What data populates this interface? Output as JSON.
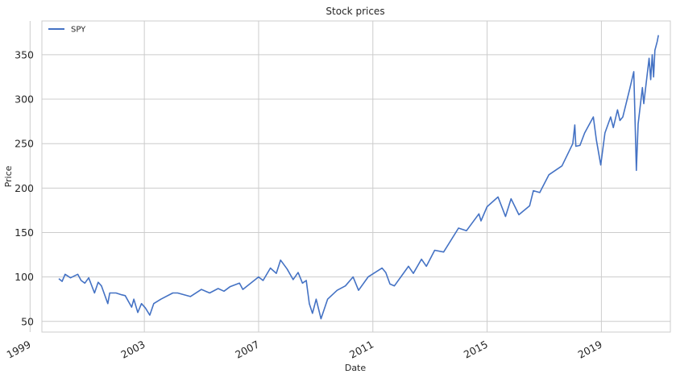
{
  "chart_data": {
    "type": "line",
    "title": "Stock prices",
    "xlabel": "Date",
    "ylabel": "Price",
    "xlim": [
      "1999-06-01",
      "2021-06-01"
    ],
    "ylim": [
      38,
      388
    ],
    "x_ticks": [
      "1999",
      "2003",
      "2007",
      "2011",
      "2015",
      "2019"
    ],
    "y_ticks": [
      50,
      100,
      150,
      200,
      250,
      300,
      350
    ],
    "grid": true,
    "legend": {
      "placement": "top-left"
    },
    "colors": {
      "line": "#4472c4",
      "grid": "#cccccc"
    },
    "series": [
      {
        "name": "SPY",
        "points": [
          [
            "2000-01-03",
            98
          ],
          [
            "2000-02-15",
            95
          ],
          [
            "2000-03-24",
            103
          ],
          [
            "2000-06-01",
            99
          ],
          [
            "2000-09-01",
            103
          ],
          [
            "2000-10-15",
            96
          ],
          [
            "2000-12-01",
            93
          ],
          [
            "2001-01-20",
            99
          ],
          [
            "2001-04-04",
            82
          ],
          [
            "2001-05-20",
            94
          ],
          [
            "2001-07-01",
            90
          ],
          [
            "2001-09-21",
            70
          ],
          [
            "2001-10-15",
            82
          ],
          [
            "2002-01-04",
            82
          ],
          [
            "2002-03-15",
            80
          ],
          [
            "2002-05-01",
            79
          ],
          [
            "2002-07-23",
            66
          ],
          [
            "2002-08-20",
            75
          ],
          [
            "2002-10-09",
            60
          ],
          [
            "2002-11-25",
            70
          ],
          [
            "2003-01-15",
            65
          ],
          [
            "2003-03-11",
            57
          ],
          [
            "2003-05-01",
            70
          ],
          [
            "2003-08-01",
            75
          ],
          [
            "2003-12-31",
            82
          ],
          [
            "2004-03-01",
            82
          ],
          [
            "2004-08-12",
            78
          ],
          [
            "2004-12-31",
            86
          ],
          [
            "2005-04-15",
            82
          ],
          [
            "2005-08-01",
            87
          ],
          [
            "2005-10-15",
            84
          ],
          [
            "2005-12-31",
            89
          ],
          [
            "2006-05-01",
            93
          ],
          [
            "2006-06-13",
            86
          ],
          [
            "2006-12-31",
            100
          ],
          [
            "2007-02-27",
            96
          ],
          [
            "2007-06-01",
            110
          ],
          [
            "2007-08-15",
            104
          ],
          [
            "2007-10-09",
            119
          ],
          [
            "2007-12-31",
            109
          ],
          [
            "2008-03-17",
            97
          ],
          [
            "2008-05-20",
            105
          ],
          [
            "2008-07-15",
            93
          ],
          [
            "2008-09-01",
            96
          ],
          [
            "2008-10-10",
            70
          ],
          [
            "2008-11-20",
            59
          ],
          [
            "2009-01-06",
            75
          ],
          [
            "2009-03-09",
            53
          ],
          [
            "2009-06-01",
            75
          ],
          [
            "2009-10-01",
            85
          ],
          [
            "2010-01-15",
            90
          ],
          [
            "2010-04-23",
            100
          ],
          [
            "2010-07-02",
            85
          ],
          [
            "2010-11-01",
            100
          ],
          [
            "2011-04-29",
            110
          ],
          [
            "2011-06-15",
            105
          ],
          [
            "2011-08-08",
            92
          ],
          [
            "2011-10-03",
            90
          ],
          [
            "2012-04-01",
            112
          ],
          [
            "2012-06-01",
            104
          ],
          [
            "2012-09-14",
            120
          ],
          [
            "2012-11-15",
            112
          ],
          [
            "2013-03-01",
            130
          ],
          [
            "2013-06-24",
            128
          ],
          [
            "2013-12-31",
            155
          ],
          [
            "2014-04-11",
            152
          ],
          [
            "2014-09-18",
            171
          ],
          [
            "2014-10-15",
            163
          ],
          [
            "2014-12-31",
            179
          ],
          [
            "2015-05-20",
            190
          ],
          [
            "2015-08-24",
            168
          ],
          [
            "2015-11-03",
            188
          ],
          [
            "2016-02-11",
            170
          ],
          [
            "2016-06-27",
            180
          ],
          [
            "2016-08-15",
            197
          ],
          [
            "2016-11-04",
            195
          ],
          [
            "2017-03-01",
            215
          ],
          [
            "2017-08-15",
            225
          ],
          [
            "2017-12-31",
            250
          ],
          [
            "2018-01-26",
            271
          ],
          [
            "2018-02-08",
            247
          ],
          [
            "2018-04-02",
            248
          ],
          [
            "2018-06-01",
            262
          ],
          [
            "2018-09-20",
            280
          ],
          [
            "2018-10-29",
            254
          ],
          [
            "2018-12-24",
            226
          ],
          [
            "2019-02-15",
            262
          ],
          [
            "2019-04-30",
            280
          ],
          [
            "2019-06-03",
            268
          ],
          [
            "2019-07-26",
            288
          ],
          [
            "2019-08-26",
            276
          ],
          [
            "2019-10-02",
            280
          ],
          [
            "2019-12-31",
            312
          ],
          [
            "2020-02-19",
            331
          ],
          [
            "2020-03-23",
            220
          ],
          [
            "2020-04-15",
            272
          ],
          [
            "2020-06-08",
            313
          ],
          [
            "2020-06-26",
            295
          ],
          [
            "2020-09-02",
            346
          ],
          [
            "2020-09-23",
            322
          ],
          [
            "2020-10-12",
            350
          ],
          [
            "2020-10-30",
            325
          ],
          [
            "2020-11-15",
            355
          ],
          [
            "2020-12-15",
            365
          ],
          [
            "2020-12-31",
            372
          ]
        ]
      }
    ]
  }
}
